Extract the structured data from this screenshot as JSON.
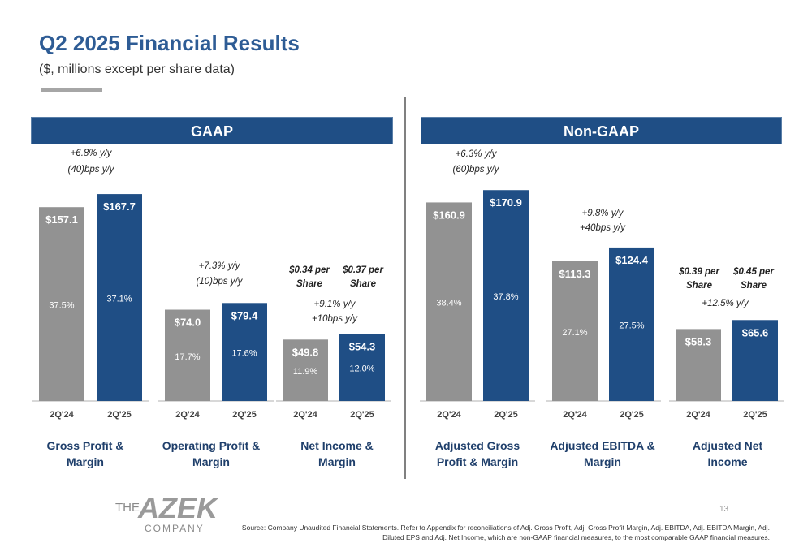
{
  "header": {
    "title": "Q2 2025 Financial Results",
    "subtitle": "($, millions except per share data)"
  },
  "sections": {
    "gaap": "GAAP",
    "non_gaap": "Non-GAAP"
  },
  "colors": {
    "prior": "#929292",
    "current": "#1f4e85",
    "banner": "#1f4e85",
    "title": "#2e5c95"
  },
  "chart_data": [
    {
      "type": "bar",
      "title": "Gross Profit & Margin",
      "categories": [
        "2Q'24",
        "2Q'25"
      ],
      "values": [
        157.1,
        167.7
      ],
      "value_labels": [
        "$157.1",
        "$167.7"
      ],
      "margins": [
        "37.5%",
        "37.1%"
      ],
      "annotation": [
        "+6.8% y/y",
        "(40)bps y/y"
      ]
    },
    {
      "type": "bar",
      "title": "Operating Profit & Margin",
      "categories": [
        "2Q'24",
        "2Q'25"
      ],
      "values": [
        74.0,
        79.4
      ],
      "value_labels": [
        "$74.0",
        "$79.4"
      ],
      "margins": [
        "17.7%",
        "17.6%"
      ],
      "annotation": [
        "+7.3% y/y",
        "(10)bps y/y"
      ]
    },
    {
      "type": "bar",
      "title": "Net Income & Margin",
      "categories": [
        "2Q'24",
        "2Q'25"
      ],
      "values": [
        49.8,
        54.3
      ],
      "value_labels": [
        "$49.8",
        "$54.3"
      ],
      "margins": [
        "11.9%",
        "12.0%"
      ],
      "per_share": [
        "$0.34 per Share",
        "$0.37 per Share"
      ],
      "annotation": [
        "+9.1% y/y",
        "+10bps y/y"
      ]
    },
    {
      "type": "bar",
      "title": "Adjusted Gross Profit & Margin",
      "categories": [
        "2Q'24",
        "2Q'25"
      ],
      "values": [
        160.9,
        170.9
      ],
      "value_labels": [
        "$160.9",
        "$170.9"
      ],
      "margins": [
        "38.4%",
        "37.8%"
      ],
      "annotation": [
        "+6.3% y/y",
        "(60)bps y/y"
      ]
    },
    {
      "type": "bar",
      "title": "Adjusted EBITDA & Margin",
      "categories": [
        "2Q'24",
        "2Q'25"
      ],
      "values": [
        113.3,
        124.4
      ],
      "value_labels": [
        "$113.3",
        "$124.4"
      ],
      "margins": [
        "27.1%",
        "27.5%"
      ],
      "annotation": [
        "+9.8% y/y",
        "+40bps y/y"
      ]
    },
    {
      "type": "bar",
      "title": "Adjusted Net Income",
      "categories": [
        "2Q'24",
        "2Q'25"
      ],
      "values": [
        58.3,
        65.6
      ],
      "value_labels": [
        "$58.3",
        "$65.6"
      ],
      "per_share": [
        "$0.39 per Share",
        "$0.45 per Share"
      ],
      "annotation": [
        "+12.5% y/y"
      ]
    }
  ],
  "footer": {
    "page_number": "13",
    "source": "Source: Company Unaudited Financial Statements. Refer to Appendix for reconciliations of Adj. Gross Profit, Adj. Gross Profit Margin, Adj. EBITDA, Adj. EBITDA Margin, Adj. Diluted EPS and Adj. Net Income, which are non-GAAP financial measures, to the most comparable GAAP financial measures.",
    "logo": {
      "the": "THE",
      "azek": "AZEK",
      "company": "COMPANY"
    }
  }
}
